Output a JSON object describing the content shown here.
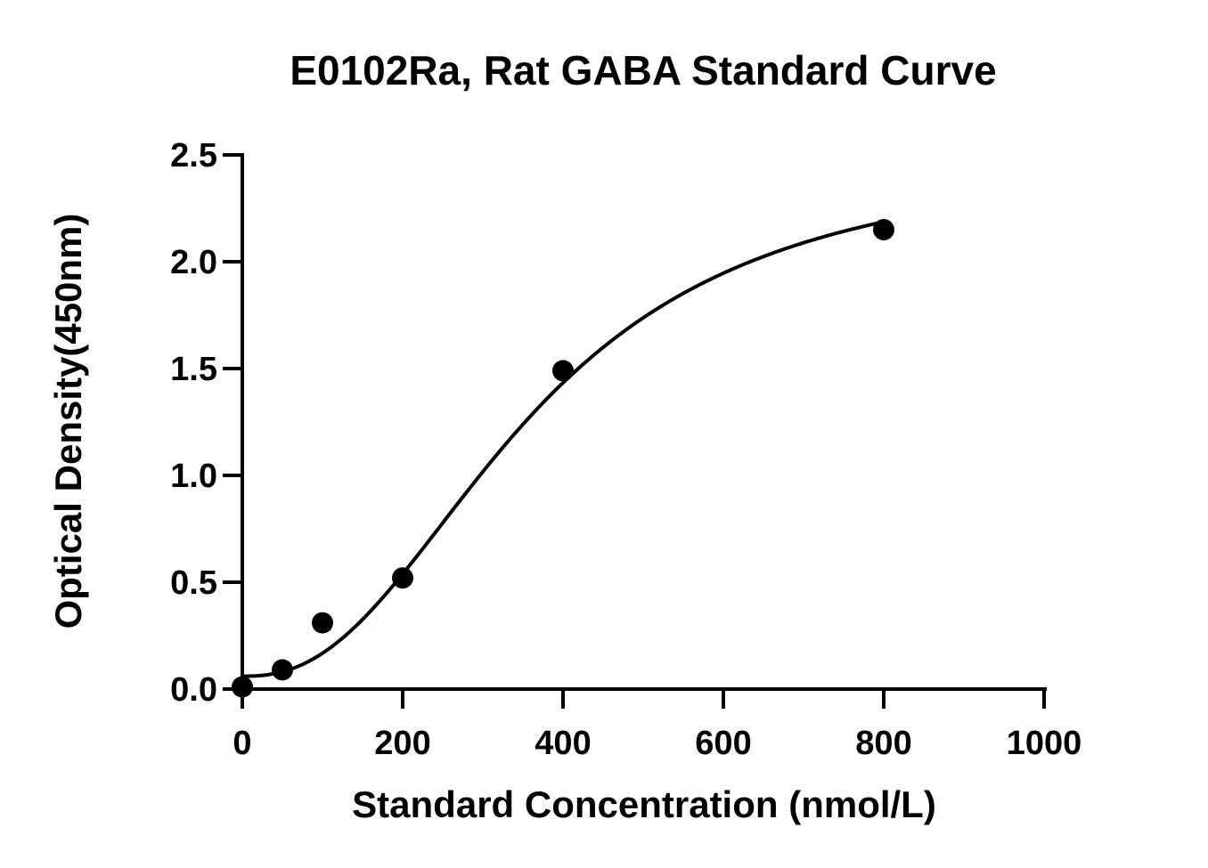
{
  "chart_data": {
    "type": "scatter",
    "title": "E0102Ra, Rat GABA Standard Curve",
    "xlabel": "Standard Concentration (nmol/L)",
    "ylabel": "Optical Density(450nm)",
    "xlim": [
      0,
      1000
    ],
    "ylim": [
      0,
      2.5
    ],
    "xticks": [
      "0",
      "200",
      "400",
      "600",
      "800",
      "1000"
    ],
    "yticks": [
      "0.0",
      "0.5",
      "1.0",
      "1.5",
      "2.0",
      "2.5"
    ],
    "grid": false,
    "legend": "none",
    "series": [
      {
        "points": [
          {
            "x": 0,
            "y": 0.01
          },
          {
            "x": 50,
            "y": 0.09
          },
          {
            "x": 100,
            "y": 0.31
          },
          {
            "x": 200,
            "y": 0.52
          },
          {
            "x": 400,
            "y": 1.49
          },
          {
            "x": 800,
            "y": 2.15
          }
        ],
        "marker": "circle",
        "color": "#000000"
      }
    ],
    "fit_curve": {
      "model": "4PL",
      "a": 0.06,
      "d": 2.5,
      "c": 360,
      "b": 2.4,
      "color": "#000000"
    }
  }
}
